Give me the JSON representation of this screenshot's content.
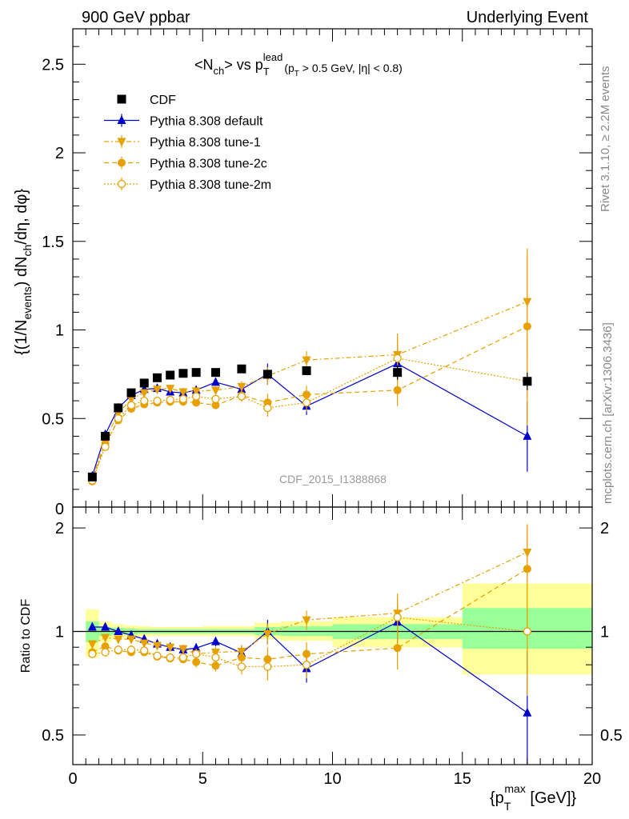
{
  "header": {
    "left": "900 GeV ppbar",
    "right": "Underlying Event"
  },
  "side_labels": {
    "rivet": "Rivet 3.1.10, ≥ 2.2M events",
    "mcplots": "mcplots.cern.ch [arXiv:1306.3436]"
  },
  "watermark": "CDF_2015_I1388868",
  "colors": {
    "cdf": "#000000",
    "default": "#0000cc",
    "tune": "#e6a000",
    "band_inner": "#99ff99",
    "band_outer": "#ffff99"
  },
  "chart_data": [
    {
      "type": "scatter",
      "title": "<N_ch> vs p_T^lead (p_T > 0.5 GeV, |η| < 0.8)",
      "title_parts": {
        "main": "<N",
        "main_sub": "ch",
        "vs": "> vs p",
        "vs_sub": "T",
        "vs_sup": "lead",
        "cut": "(p",
        "cut_sub": "T",
        "cut_rest": " > 0.5 GeV, |η| < 0.8)"
      },
      "ylabel": "{(1/N_events) dN_ch/dη, dφ}",
      "ylabel_parts": {
        "a": "{(1/N",
        "a_sub": "events",
        "b": ") dN",
        "b_sub": "ch",
        "c": "/dη, dφ}"
      },
      "ylim": [
        0,
        2.7
      ],
      "xlim": [
        0,
        20
      ],
      "y_ticks": [
        "0.5",
        "1",
        "1.5",
        "2",
        "2.5"
      ],
      "y_tick_values": [
        0.5,
        1,
        1.5,
        2,
        2.5
      ],
      "y_bottom_tick_label": "0",
      "legend": [
        {
          "name": "CDF",
          "style": "cdf"
        },
        {
          "name": "Pythia 8.308 default",
          "style": "default"
        },
        {
          "name": "Pythia 8.308 tune-1",
          "style": "tune1"
        },
        {
          "name": "Pythia 8.308 tune-2c",
          "style": "tune2c"
        },
        {
          "name": "Pythia 8.308 tune-2m",
          "style": "tune2m"
        }
      ],
      "x": [
        0.75,
        1.25,
        1.75,
        2.25,
        2.75,
        3.25,
        3.75,
        4.25,
        4.75,
        5.5,
        6.5,
        7.5,
        9.0,
        12.5,
        17.5
      ],
      "series": [
        {
          "name": "CDF",
          "values": [
            0.17,
            0.4,
            0.56,
            0.645,
            0.7,
            0.73,
            0.745,
            0.755,
            0.76,
            0.76,
            0.78,
            0.75,
            0.77,
            0.76,
            0.71
          ],
          "errors": [
            0.01,
            0.01,
            0.01,
            0.01,
            0.01,
            0.01,
            0.01,
            0.01,
            0.01,
            0.01,
            0.01,
            0.02,
            0.02,
            0.04,
            0.05
          ]
        },
        {
          "name": "Pythia 8.308 default",
          "values": [
            0.175,
            0.41,
            0.56,
            0.63,
            0.665,
            0.67,
            0.65,
            0.645,
            0.66,
            0.705,
            0.665,
            0.75,
            0.57,
            0.81,
            0.4
          ],
          "errors": [
            0.005,
            0.008,
            0.01,
            0.01,
            0.01,
            0.015,
            0.015,
            0.015,
            0.02,
            0.02,
            0.03,
            0.06,
            0.05,
            0.1,
            0.2
          ]
        },
        {
          "name": "Pythia 8.308 tune-1",
          "values": [
            0.155,
            0.38,
            0.53,
            0.61,
            0.645,
            0.665,
            0.67,
            0.65,
            0.655,
            0.66,
            0.68,
            0.74,
            0.83,
            0.86,
            1.16
          ],
          "errors": [
            0.005,
            0.008,
            0.01,
            0.01,
            0.01,
            0.015,
            0.015,
            0.015,
            0.02,
            0.02,
            0.03,
            0.05,
            0.05,
            0.12,
            0.3
          ]
        },
        {
          "name": "Pythia 8.308 tune-2c",
          "values": [
            0.145,
            0.36,
            0.49,
            0.555,
            0.58,
            0.59,
            0.595,
            0.595,
            0.59,
            0.575,
            0.63,
            0.59,
            0.635,
            0.66,
            1.02
          ],
          "errors": [
            0.005,
            0.008,
            0.01,
            0.01,
            0.01,
            0.015,
            0.015,
            0.015,
            0.02,
            0.02,
            0.03,
            0.05,
            0.05,
            0.09,
            0.4
          ]
        },
        {
          "name": "Pythia 8.308 tune-2m",
          "values": [
            0.15,
            0.34,
            0.5,
            0.575,
            0.6,
            0.6,
            0.605,
            0.61,
            0.625,
            0.61,
            0.625,
            0.56,
            0.59,
            0.84,
            0.71
          ],
          "errors": [
            0.005,
            0.008,
            0.01,
            0.01,
            0.01,
            0.015,
            0.015,
            0.015,
            0.02,
            0.02,
            0.03,
            0.05,
            0.05,
            0.12,
            0.25
          ]
        }
      ]
    },
    {
      "type": "scatter",
      "ylabel": "Ratio to CDF",
      "xlabel": "{p_T^max [GeV]}",
      "xlabel_parts": {
        "a": "{p",
        "a_sub": "T",
        "a_sup": "max",
        "b": " [GeV]}"
      },
      "ylim": [
        0.41,
        2.3
      ],
      "log_y": true,
      "xlim": [
        0,
        20
      ],
      "x_ticks": [
        "0",
        "5",
        "10",
        "15",
        "20"
      ],
      "x_tick_values": [
        0,
        5,
        10,
        15,
        20
      ],
      "y_ticks": [
        "0.5",
        "1",
        "2"
      ],
      "y_tick_values": [
        0.5,
        1,
        2
      ],
      "data_bands": [
        {
          "x0": 0.5,
          "x1": 1.0,
          "inner": [
            0.93,
            1.07
          ],
          "outer": [
            0.84,
            1.16
          ]
        },
        {
          "x0": 1.0,
          "x1": 1.5,
          "inner": [
            0.97,
            1.03
          ],
          "outer": [
            0.93,
            1.07
          ]
        },
        {
          "x0": 1.5,
          "x1": 2.0,
          "inner": [
            0.98,
            1.025
          ],
          "outer": [
            0.955,
            1.05
          ]
        },
        {
          "x0": 2.0,
          "x1": 2.5,
          "inner": [
            0.98,
            1.02
          ],
          "outer": [
            0.96,
            1.04
          ]
        },
        {
          "x0": 2.5,
          "x1": 3.0,
          "inner": [
            0.985,
            1.015
          ],
          "outer": [
            0.965,
            1.035
          ]
        },
        {
          "x0": 3.0,
          "x1": 5.0,
          "inner": [
            0.985,
            1.015
          ],
          "outer": [
            0.97,
            1.03
          ]
        },
        {
          "x0": 5.0,
          "x1": 7.0,
          "inner": [
            0.985,
            1.015
          ],
          "outer": [
            0.97,
            1.035
          ]
        },
        {
          "x0": 7.0,
          "x1": 8.0,
          "inner": [
            0.975,
            1.03
          ],
          "outer": [
            0.95,
            1.06
          ]
        },
        {
          "x0": 8.0,
          "x1": 10.0,
          "inner": [
            0.97,
            1.035
          ],
          "outer": [
            0.94,
            1.07
          ]
        },
        {
          "x0": 10.0,
          "x1": 15.0,
          "inner": [
            0.95,
            1.05
          ],
          "outer": [
            0.9,
            1.1
          ]
        },
        {
          "x0": 15.0,
          "x1": 20.0,
          "inner": [
            0.89,
            1.17
          ],
          "outer": [
            0.75,
            1.38
          ]
        }
      ],
      "x": [
        0.75,
        1.25,
        1.75,
        2.25,
        2.75,
        3.25,
        3.75,
        4.25,
        4.75,
        5.5,
        6.5,
        7.5,
        9.0,
        12.5,
        17.5
      ],
      "series": [
        {
          "name": "Pythia 8.308 default",
          "values": [
            1.03,
            1.03,
            1.0,
            0.975,
            0.95,
            0.92,
            0.9,
            0.885,
            0.895,
            0.935,
            0.865,
            1.0,
            0.78,
            1.065,
            0.58
          ],
          "errors": [
            0.02,
            0.02,
            0.02,
            0.02,
            0.02,
            0.02,
            0.02,
            0.02,
            0.03,
            0.03,
            0.04,
            0.08,
            0.07,
            0.14,
            0.3
          ]
        },
        {
          "name": "Pythia 8.308 tune-1",
          "values": [
            0.92,
            0.96,
            0.95,
            0.95,
            0.925,
            0.91,
            0.9,
            0.89,
            0.86,
            0.87,
            0.875,
            0.985,
            1.08,
            1.13,
            1.7
          ],
          "errors": [
            0.02,
            0.02,
            0.02,
            0.02,
            0.02,
            0.02,
            0.02,
            0.02,
            0.03,
            0.03,
            0.04,
            0.07,
            0.07,
            0.16,
            0.35
          ]
        },
        {
          "name": "Pythia 8.308 tune-2c",
          "values": [
            0.87,
            0.905,
            0.88,
            0.87,
            0.87,
            0.845,
            0.835,
            0.83,
            0.815,
            0.795,
            0.84,
            0.83,
            0.86,
            0.895,
            1.52
          ],
          "errors": [
            0.02,
            0.02,
            0.02,
            0.02,
            0.02,
            0.02,
            0.02,
            0.02,
            0.03,
            0.03,
            0.04,
            0.07,
            0.07,
            0.12,
            0.5
          ]
        },
        {
          "name": "Pythia 8.308 tune-2m",
          "values": [
            0.86,
            0.87,
            0.885,
            0.885,
            0.88,
            0.85,
            0.84,
            0.84,
            0.86,
            0.84,
            0.79,
            0.79,
            0.8,
            1.1,
            1.0
          ],
          "errors": [
            0.02,
            0.02,
            0.02,
            0.02,
            0.02,
            0.02,
            0.02,
            0.02,
            0.03,
            0.03,
            0.04,
            0.07,
            0.07,
            0.16,
            0.35
          ]
        }
      ]
    }
  ]
}
